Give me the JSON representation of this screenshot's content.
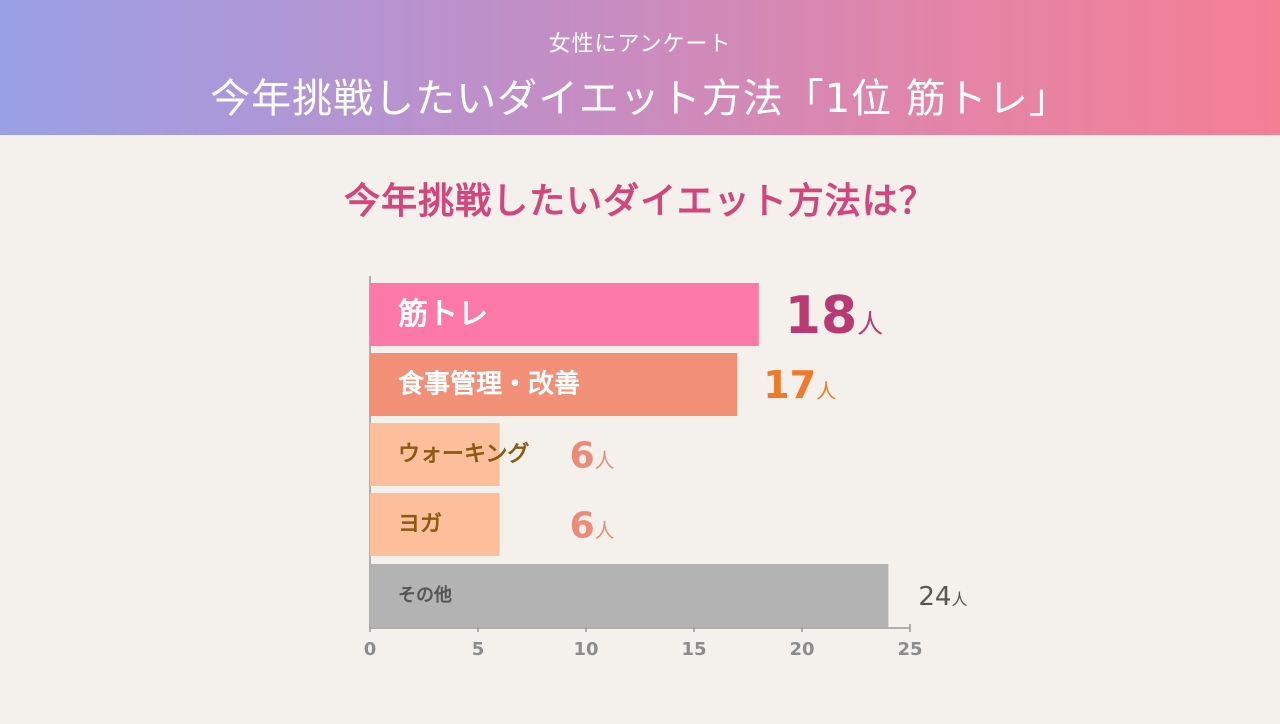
{
  "header": {
    "subtitle": "女性にアンケート",
    "title": "今年挑戦したいダイエット方法「1位 筋トレ」"
  },
  "chart_title": "今年挑戦したいダイエット方法は？",
  "chart_data": {
    "type": "bar",
    "orientation": "horizontal",
    "title": "今年挑戦したいダイエット方法は？",
    "categories": [
      "筋トレ",
      "食事管理・改善",
      "ウォーキング",
      "ヨガ",
      "その他"
    ],
    "values": [
      18,
      17,
      6,
      6,
      24
    ],
    "value_labels": [
      "18",
      "17",
      "6",
      "6",
      "24"
    ],
    "unit": "人",
    "xlim": [
      0,
      25
    ],
    "xticks": [
      "0",
      "5",
      "10",
      "15",
      "20",
      "25"
    ],
    "grid": false,
    "colors": {
      "bars": [
        "#fc79a7",
        "#f28f77",
        "#fdbf9b",
        "#fdbf9b",
        "#b3b3b3"
      ],
      "labels": [
        "#ffffff",
        "#ffffff",
        "#8a5a10",
        "#8a5a10",
        "#555555"
      ],
      "values": [
        "#b83a70",
        "#f07a28",
        "#eb8c78",
        "#eb8c78",
        "#555555"
      ],
      "axis": "#999999"
    }
  }
}
